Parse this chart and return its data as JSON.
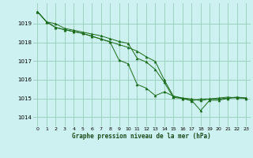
{
  "title": "Graphe pression niveau de la mer (hPa)",
  "bg_color": "#cdf0f0",
  "grid_color": "#99ccbb",
  "line_color": "#1a6b1a",
  "marker_color": "#1a6b1a",
  "xlim": [
    -0.5,
    23.5
  ],
  "ylim": [
    1013.5,
    1020.1
  ],
  "yticks": [
    1014,
    1015,
    1016,
    1017,
    1018,
    1019
  ],
  "xticks": [
    0,
    1,
    2,
    3,
    4,
    5,
    6,
    7,
    8,
    9,
    10,
    11,
    12,
    13,
    14,
    15,
    16,
    17,
    18,
    19,
    20,
    21,
    22,
    23
  ],
  "series": [
    [
      1019.65,
      1019.1,
      1019.0,
      1018.75,
      1018.65,
      1018.55,
      1018.45,
      1018.35,
      1018.2,
      1018.05,
      1017.95,
      1017.15,
      1016.95,
      1016.55,
      1015.85,
      1015.05,
      1015.0,
      1014.9,
      1014.35,
      1014.9,
      1014.9,
      1015.0,
      1015.05,
      1015.0
    ],
    [
      1019.65,
      1019.1,
      1018.8,
      1018.68,
      1018.58,
      1018.48,
      1018.33,
      1018.18,
      1018.03,
      1017.88,
      1017.73,
      1017.53,
      1017.23,
      1016.98,
      1015.98,
      1015.12,
      1015.02,
      1014.97,
      1014.88,
      1014.97,
      1014.97,
      1015.02,
      1015.07,
      1015.02
    ],
    [
      1019.65,
      1019.1,
      1018.8,
      1018.68,
      1018.58,
      1018.48,
      1018.33,
      1018.18,
      1018.03,
      1017.05,
      1016.85,
      1015.75,
      1015.55,
      1015.15,
      1015.35,
      1015.12,
      1015.0,
      1014.87,
      1014.97,
      1014.97,
      1015.02,
      1015.07,
      1015.02,
      1015.02
    ]
  ]
}
